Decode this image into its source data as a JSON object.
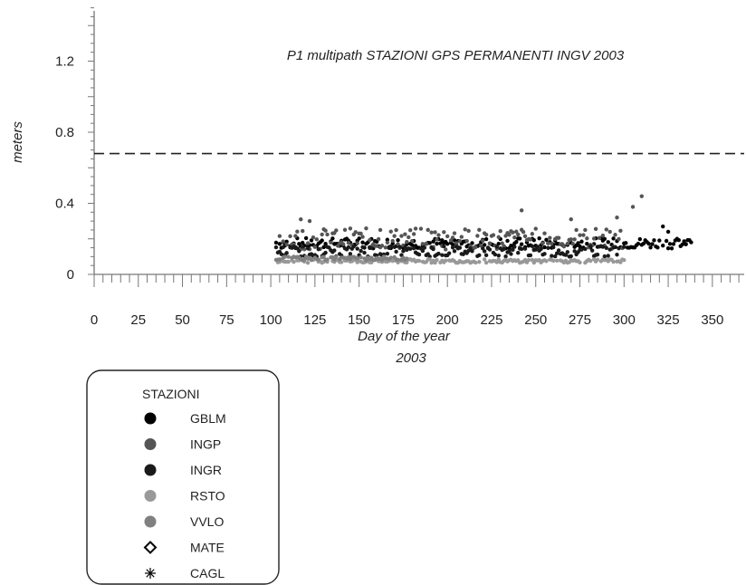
{
  "chart_data": {
    "type": "scatter",
    "title": "P1 multipath STAZIONI GPS PERMANENTI INGV 2003",
    "xlabel": "Day of the year",
    "xlabel_sub": "2003",
    "ylabel": "meters",
    "xlim": [
      0,
      365
    ],
    "ylim": [
      0,
      1.5
    ],
    "x_ticks": [
      "0",
      "25",
      "50",
      "75",
      "100",
      "125",
      "150",
      "175",
      "200",
      "225",
      "250",
      "275",
      "300",
      "325",
      "350"
    ],
    "y_ticks": [
      "0",
      "0.4",
      "0.8",
      "1.2"
    ],
    "threshold": 0.68,
    "grid": false,
    "legend": {
      "title": "STAZIONI",
      "position": "bottom-left",
      "entries": [
        {
          "name": "GBLM",
          "marker": "filled-circle",
          "color": "#000000"
        },
        {
          "name": "INGP",
          "marker": "filled-circle",
          "color": "#555555"
        },
        {
          "name": "INGR",
          "marker": "filled-circle",
          "color": "#1a1a1a"
        },
        {
          "name": "RSTO",
          "marker": "filled-circle",
          "color": "#999999"
        },
        {
          "name": "VVLO",
          "marker": "filled-circle",
          "color": "#808080"
        },
        {
          "name": "MATE",
          "marker": "open-diamond",
          "color": "#000000"
        },
        {
          "name": "CAGL",
          "marker": "star",
          "color": "#000000"
        }
      ]
    },
    "series": [
      {
        "name": "GBLM",
        "color": "#000000",
        "x_range": [
          103,
          338
        ],
        "base": 0.175,
        "spread": 0.03,
        "extra": [
          [
            322,
            0.27
          ],
          [
            325,
            0.24
          ],
          [
            330,
            0.2
          ],
          [
            335,
            0.17
          ]
        ]
      },
      {
        "name": "INGP",
        "color": "#555555",
        "x_range": [
          105,
          300
        ],
        "base": 0.2,
        "spread": 0.06,
        "extra": [
          [
            242,
            0.36
          ],
          [
            310,
            0.44
          ],
          [
            305,
            0.38
          ],
          [
            296,
            0.32
          ],
          [
            117,
            0.31
          ],
          [
            122,
            0.3
          ],
          [
            162,
            0.25
          ],
          [
            270,
            0.31
          ]
        ]
      },
      {
        "name": "INGR",
        "color": "#1a1a1a",
        "x_range": [
          103,
          300
        ],
        "base": 0.13,
        "spread": 0.03,
        "extra": []
      },
      {
        "name": "RSTO",
        "color": "#999999",
        "x_range": [
          103,
          300
        ],
        "base": 0.075,
        "spread": 0.01,
        "extra": []
      },
      {
        "name": "VVLO",
        "color": "#808080",
        "x_range": [
          103,
          178
        ],
        "base": 0.09,
        "spread": 0.01,
        "extra": []
      }
    ]
  }
}
